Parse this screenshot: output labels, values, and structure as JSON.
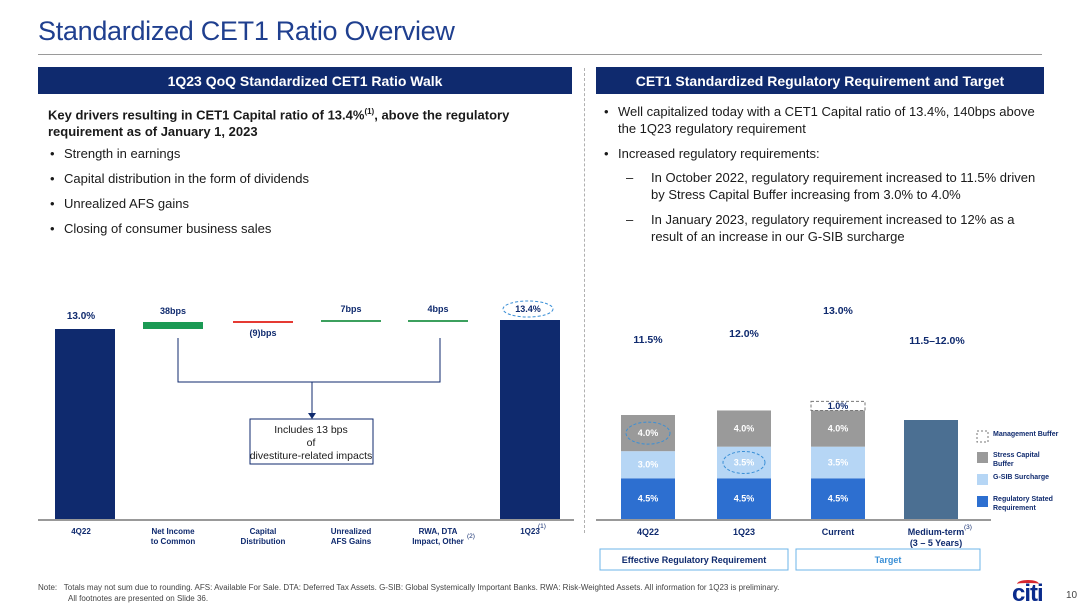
{
  "page": {
    "title": "Standardized CET1 Ratio Overview",
    "page_number": "10",
    "logo_text": "citi",
    "note_label": "Note:",
    "note_line1": "Totals may not sum due to rounding. AFS: Available For Sale. DTA: Deferred Tax Assets. G-SIB: Global Systemically Important Banks. RWA: Risk-Weighted Assets. All information for 1Q23 is preliminary.",
    "note_line2": "All footnotes are presented on Slide 36."
  },
  "left": {
    "banner": "1Q23 QoQ Standardized CET1 Ratio Walk",
    "heading_part1": "Key drivers resulting in CET1 Capital ratio of 13.4%",
    "heading_sup": "(1)",
    "heading_part2": ", above the regulatory requirement as of January 1, 2023",
    "bullets": [
      "Strength in earnings",
      "Capital distribution in the form of dividends",
      "Unrealized AFS gains",
      "Closing of consumer business sales"
    ]
  },
  "right": {
    "banner": "CET1 Standardized Regulatory Requirement and Target",
    "bullet1": "Well capitalized today with a CET1 Capital ratio of 13.4%, 140bps above the 1Q23 regulatory requirement",
    "bullet2": "Increased regulatory requirements:",
    "dash": "–",
    "sub1": "In October 2022, regulatory requirement increased to 11.5% driven by Stress Capital Buffer increasing from 3.0% to 4.0%",
    "sub2": "In January 2023, regulatory requirement increased to 12% as a result of an increase in our G-SIB surcharge"
  },
  "chart_data": [
    {
      "type": "bar",
      "subtype": "waterfall",
      "unit": "%",
      "categories": [
        "4Q22",
        "Net Income to Common",
        "Capital Distribution",
        "Unrealized AFS Gains",
        "RWA, DTA Impact, Other",
        "1Q23"
      ],
      "category_lines": [
        [
          "4Q22"
        ],
        [
          "Net Income",
          "to Common"
        ],
        [
          "Capital",
          "Distribution"
        ],
        [
          "Unrealized",
          "AFS Gains"
        ],
        [
          "RWA, DTA",
          "Impact, Other"
        ],
        [
          "1Q23"
        ]
      ],
      "category_footnotes": [
        "",
        "",
        "",
        "",
        "(2)",
        "(1)"
      ],
      "start_value": 13.0,
      "changes_bps": [
        38,
        -9,
        7,
        4
      ],
      "end_value": 13.4,
      "labels": [
        "13.0%",
        "38bps",
        "(9)bps",
        "7bps",
        "4bps",
        "13.4%"
      ],
      "annotation": "Includes 13 bps of divestiture-related impacts",
      "colors": {
        "total": "#0f2a6e",
        "increase": "#1b9a54",
        "decrease": "#e53a33",
        "small": "#3ca05e"
      }
    },
    {
      "type": "bar",
      "subtype": "stacked",
      "unit": "%",
      "categories": [
        "4Q22",
        "1Q23",
        "Current",
        "Medium-term"
      ],
      "category_line2": [
        "",
        "",
        "",
        "(3 – 5 Years)"
      ],
      "category_footnotes": [
        "",
        "",
        "",
        "(3)"
      ],
      "series": [
        {
          "name": "Regulatory Stated Requirement",
          "color": "#2d6fd0",
          "values": [
            4.5,
            4.5,
            4.5,
            null
          ],
          "labels": [
            "4.5%",
            "4.5%",
            "4.5%",
            ""
          ]
        },
        {
          "name": "G-SIB Surcharge",
          "color": "#b6d6f5",
          "values": [
            3.0,
            3.5,
            3.5,
            null
          ],
          "labels": [
            "3.0%",
            "3.5%",
            "3.5%",
            ""
          ]
        },
        {
          "name": "Stress Capital Buffer",
          "color": "#9a9a9a",
          "values": [
            4.0,
            4.0,
            4.0,
            null
          ],
          "labels": [
            "4.0%",
            "4.0%",
            "4.0%",
            ""
          ]
        },
        {
          "name": "Management Buffer",
          "color": "#ffffff",
          "values": [
            null,
            null,
            1.0,
            null
          ],
          "labels": [
            "",
            "",
            "1.0%",
            ""
          ]
        }
      ],
      "target": {
        "category": "Medium-term",
        "low": 11.5,
        "high": 12.0,
        "color": "#4b6f92"
      },
      "totals": [
        "11.5%",
        "12.0%",
        "13.0%",
        "11.5–12.0%"
      ],
      "group_labels": {
        "effective": "Effective Regulatory Requirement",
        "target": "Target"
      },
      "legend_position": "right"
    }
  ]
}
